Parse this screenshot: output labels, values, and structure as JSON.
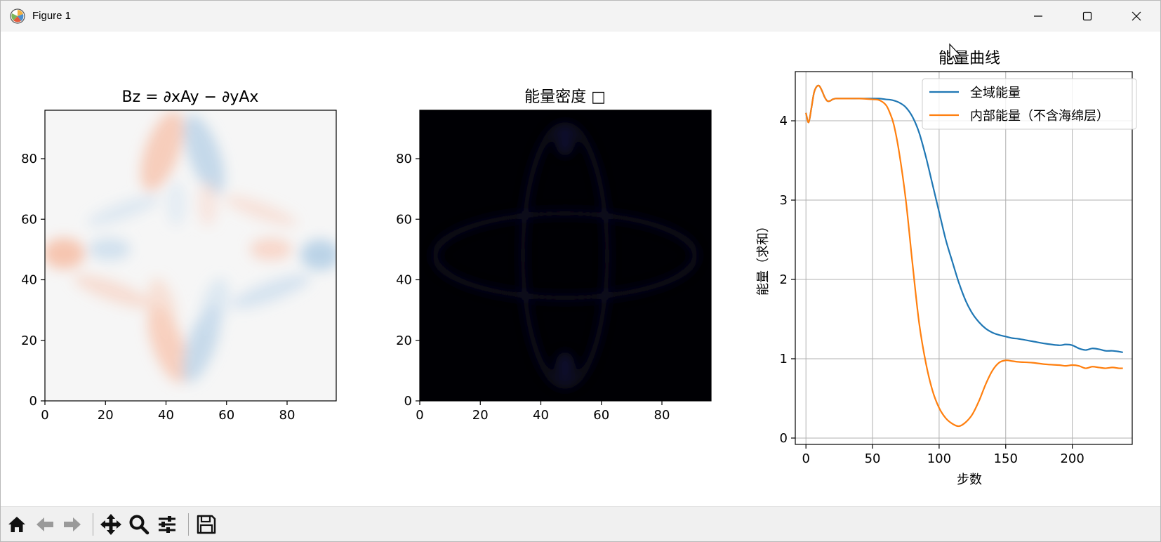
{
  "window": {
    "title": "Figure 1",
    "controls": [
      "minimize",
      "maximize",
      "close"
    ]
  },
  "toolbar": {
    "buttons": [
      {
        "name": "home",
        "icon": "home-icon"
      },
      {
        "name": "back",
        "icon": "arrow-left-icon"
      },
      {
        "name": "forward",
        "icon": "arrow-right-icon"
      },
      {
        "name": "pan",
        "icon": "move-icon"
      },
      {
        "name": "zoom",
        "icon": "magnifier-icon"
      },
      {
        "name": "configure-subplots",
        "icon": "sliders-icon"
      },
      {
        "name": "save",
        "icon": "floppy-disk-icon"
      }
    ]
  },
  "chart_data": [
    {
      "type": "heatmap",
      "title": "Bz = ∂xAy − ∂yAx",
      "xlabel": "",
      "ylabel": "",
      "xlim": [
        0,
        96
      ],
      "ylim": [
        0,
        96
      ],
      "xticks": [
        "0",
        "20",
        "40",
        "60",
        "80"
      ],
      "yticks": [
        "0",
        "20",
        "40",
        "60",
        "80"
      ],
      "colormap": "diverging-blue-white-red",
      "colors": {
        "negative": "#bcd4e8",
        "neutral": "#f5f5f5",
        "positive": "#f5c7b5"
      }
    },
    {
      "type": "heatmap",
      "title": "能量密度 □",
      "xlabel": "",
      "ylabel": "",
      "xlim": [
        0,
        96
      ],
      "ylim": [
        0,
        96
      ],
      "xticks": [
        "0",
        "20",
        "40",
        "60",
        "80"
      ],
      "yticks": [
        "0",
        "20",
        "40",
        "60",
        "80"
      ],
      "colormap": "inferno-near-zero",
      "colors": {
        "background": "#000004",
        "faint": "#0a0820"
      }
    },
    {
      "type": "line",
      "title": "能量曲线",
      "xlabel": "步数",
      "ylabel": "能量（求和）",
      "xlim": [
        -8,
        245
      ],
      "ylim": [
        -0.08,
        4.62
      ],
      "xticks": [
        0,
        50,
        100,
        150,
        200
      ],
      "yticks": [
        0,
        1,
        2,
        3,
        4
      ],
      "grid": true,
      "legend": "top-right",
      "series": [
        {
          "name": "全域能量",
          "color": "#1f77b4",
          "x": [
            0,
            2,
            4,
            6,
            8,
            10,
            12,
            14,
            16,
            18,
            20,
            22,
            24,
            26,
            28,
            30,
            40,
            50,
            55,
            60,
            65,
            70,
            75,
            80,
            85,
            90,
            95,
            100,
            105,
            110,
            115,
            120,
            125,
            130,
            135,
            140,
            145,
            150,
            155,
            160,
            170,
            180,
            190,
            195,
            200,
            205,
            210,
            215,
            220,
            225,
            230,
            235,
            238
          ],
          "y": [
            4.1,
            3.98,
            4.15,
            4.35,
            4.43,
            4.44,
            4.38,
            4.3,
            4.25,
            4.25,
            4.27,
            4.28,
            4.28,
            4.28,
            4.28,
            4.28,
            4.28,
            4.28,
            4.28,
            4.27,
            4.26,
            4.23,
            4.17,
            4.05,
            3.85,
            3.55,
            3.2,
            2.85,
            2.5,
            2.22,
            1.95,
            1.73,
            1.57,
            1.46,
            1.38,
            1.33,
            1.3,
            1.28,
            1.26,
            1.25,
            1.22,
            1.19,
            1.17,
            1.18,
            1.17,
            1.13,
            1.11,
            1.13,
            1.12,
            1.1,
            1.1,
            1.09,
            1.08
          ]
        },
        {
          "name": "内部能量（不含海绵层）",
          "color": "#ff7f0e",
          "x": [
            0,
            2,
            4,
            6,
            8,
            10,
            12,
            14,
            16,
            18,
            20,
            22,
            24,
            26,
            28,
            30,
            40,
            50,
            55,
            60,
            63,
            66,
            70,
            75,
            80,
            85,
            90,
            95,
            100,
            105,
            110,
            115,
            120,
            125,
            130,
            135,
            140,
            145,
            150,
            155,
            160,
            170,
            180,
            190,
            195,
            200,
            205,
            210,
            215,
            220,
            225,
            230,
            235,
            238
          ],
          "y": [
            4.1,
            3.98,
            4.15,
            4.35,
            4.43,
            4.44,
            4.38,
            4.3,
            4.25,
            4.25,
            4.27,
            4.28,
            4.28,
            4.28,
            4.28,
            4.28,
            4.28,
            4.27,
            4.26,
            4.2,
            4.1,
            3.95,
            3.6,
            3.0,
            2.2,
            1.45,
            0.95,
            0.6,
            0.38,
            0.25,
            0.18,
            0.15,
            0.2,
            0.3,
            0.47,
            0.68,
            0.85,
            0.95,
            0.98,
            0.97,
            0.96,
            0.95,
            0.93,
            0.92,
            0.91,
            0.92,
            0.91,
            0.88,
            0.9,
            0.89,
            0.88,
            0.89,
            0.88,
            0.88
          ]
        }
      ]
    }
  ]
}
